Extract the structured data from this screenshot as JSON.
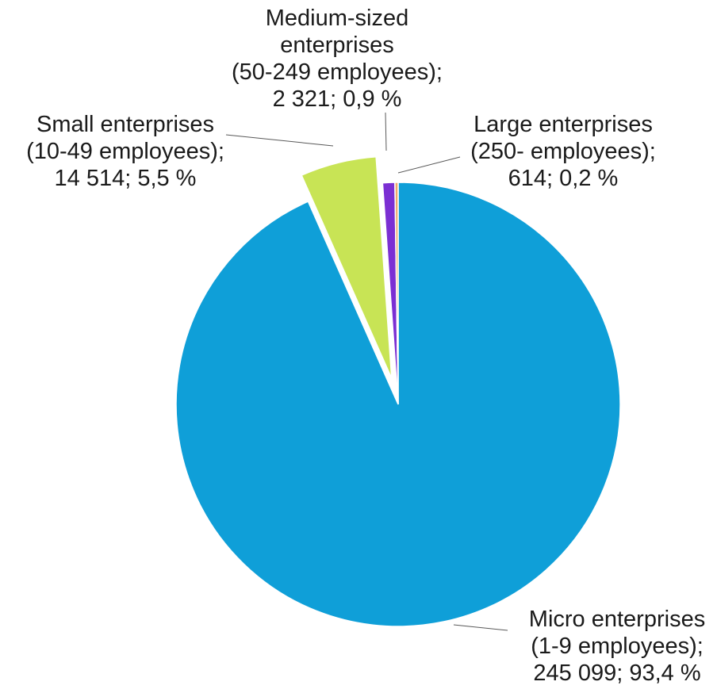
{
  "chart_data": {
    "type": "pie",
    "title": "",
    "start_angle_deg": 0,
    "direction": "clockwise",
    "slices": [
      {
        "name": "Micro enterprises (1-9 employees)",
        "value": 245099,
        "percent": 93.4,
        "color": "#0f9fd8",
        "exploded": false,
        "label_lines": [
          "Micro enterprises",
          "(1-9 employees);",
          "245 099; 93,4 %"
        ]
      },
      {
        "name": "Small enterprises (10-49 employees)",
        "value": 14514,
        "percent": 5.5,
        "color": "#c8e455",
        "exploded": true,
        "label_lines": [
          "Small enterprises",
          "(10-49 employees);",
          "14 514; 5,5 %"
        ]
      },
      {
        "name": "Medium-sized enterprises (50-249 employees)",
        "value": 2321,
        "percent": 0.9,
        "color": "#7b2fd3",
        "exploded": false,
        "label_lines": [
          "Medium-sized",
          "enterprises",
          "(50-249 employees);",
          "2 321; 0,9 %"
        ]
      },
      {
        "name": "Large enterprises (250- employees)",
        "value": 614,
        "percent": 0.2,
        "color": "#f0a868",
        "exploded": false,
        "label_lines": [
          "Large enterprises",
          "(250- employees);",
          "614; 0,2 %"
        ]
      }
    ]
  }
}
